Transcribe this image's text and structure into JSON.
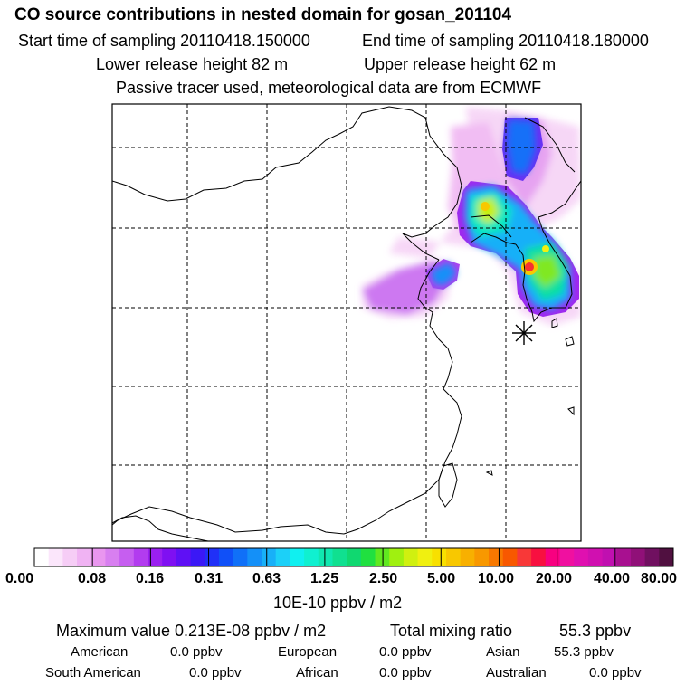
{
  "title": "CO  source contributions in nested domain for gosan_201104",
  "sampling": {
    "start": "Start time of sampling 20110418.150000",
    "end": "End time of sampling 20110418.180000"
  },
  "release": {
    "lower": "Lower release height   82 m",
    "upper": "Upper release height   62 m"
  },
  "note": "Passive tracer used, meteorological data are from ECMWF",
  "colorbar": {
    "labels": [
      "0.00",
      "0.08",
      "0.16",
      "0.31",
      "0.63",
      "1.25",
      "2.50",
      "5.00",
      "10.00",
      "20.00",
      "40.00",
      "80.00"
    ],
    "unit": "10E-10 ppbv / m2",
    "colors": [
      "#ffffff",
      "#fbe6fb",
      "#f6cdf6",
      "#f0b3f3",
      "#e996ef",
      "#d87ff0",
      "#c65ef0",
      "#b23cef",
      "#9a1ff0",
      "#7f10f2",
      "#5f10f5",
      "#3b18f6",
      "#2030f7",
      "#1050f8",
      "#1070f8",
      "#1490f8",
      "#18b0f8",
      "#1cd0f8",
      "#10f0f0",
      "#10f0d0",
      "#10e8b0",
      "#10e090",
      "#10d870",
      "#20e040",
      "#60e820",
      "#a0f010",
      "#d0f010",
      "#f0f010",
      "#f8e000",
      "#f8c800",
      "#f8b000",
      "#f89800",
      "#f87800",
      "#f85800",
      "#f83838",
      "#f81040",
      "#f80080",
      "#f010a0",
      "#e010b0",
      "#d010b0",
      "#c010b0",
      "#a81090",
      "#901078",
      "#701060",
      "#501040"
    ]
  },
  "stats": {
    "max_label": "Maximum value  0.213E-08 ppbv / m2",
    "total_label": "Total mixing ratio",
    "total_value": "55.3 ppbv"
  },
  "regions": [
    {
      "name": "American",
      "value": "0.0 ppbv"
    },
    {
      "name": "European",
      "value": "0.0 ppbv"
    },
    {
      "name": "Asian",
      "value": "55.3 ppbv"
    },
    {
      "name": "South American",
      "value": "0.0 ppbv"
    },
    {
      "name": "African",
      "value": "0.0 ppbv"
    },
    {
      "name": "Australian",
      "value": "0.0 ppbv"
    }
  ]
}
